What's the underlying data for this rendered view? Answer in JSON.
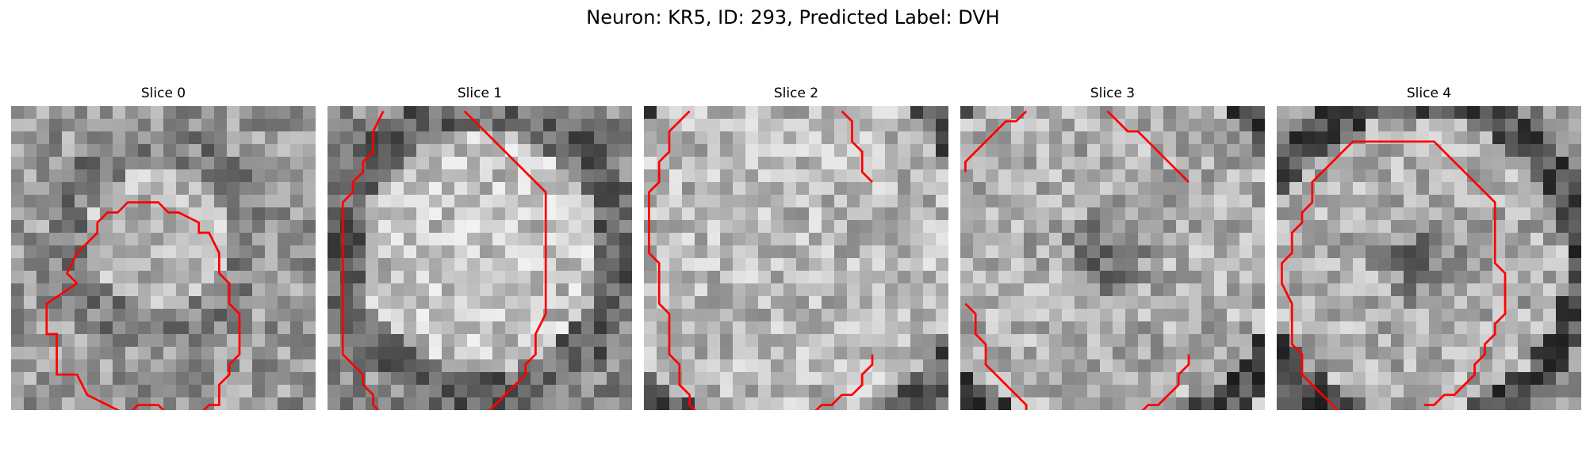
{
  "figure": {
    "title": "Neuron: KR5, ID: 293, Predicted Label: DVH"
  },
  "panels": [
    {
      "title": "Slice 0",
      "image": "grayscale-microscopy-slice",
      "contour": "red-boundary",
      "segments": [
        [
          [
            6,
            17
          ],
          [
            3,
            19
          ],
          [
            3,
            22
          ],
          [
            4,
            22
          ],
          [
            4,
            24
          ],
          [
            4,
            26
          ],
          [
            6,
            26
          ],
          [
            7,
            28
          ],
          [
            9,
            29
          ],
          [
            11,
            30
          ],
          [
            12,
            29
          ],
          [
            13,
            29
          ],
          [
            14,
            29
          ],
          [
            15,
            30
          ],
          [
            18,
            30
          ],
          [
            19,
            29
          ],
          [
            20,
            29
          ],
          [
            20,
            27
          ],
          [
            21,
            26
          ],
          [
            21,
            25
          ],
          [
            22,
            24
          ],
          [
            22,
            22
          ],
          [
            22,
            20
          ],
          [
            21,
            19
          ],
          [
            21,
            18
          ],
          [
            21,
            17
          ],
          [
            20,
            16
          ],
          [
            20,
            14
          ],
          [
            19,
            12
          ],
          [
            18,
            12
          ],
          [
            18,
            11
          ],
          [
            16,
            10
          ],
          [
            15,
            10
          ],
          [
            14,
            9
          ],
          [
            13,
            9
          ],
          [
            11,
            9
          ],
          [
            10,
            10
          ],
          [
            9,
            10
          ],
          [
            8,
            11
          ],
          [
            8,
            12
          ],
          [
            7,
            13
          ],
          [
            6,
            14
          ],
          [
            5,
            16
          ],
          [
            6,
            17
          ]
        ]
      ]
    },
    {
      "title": "Slice 1",
      "image": "grayscale-microscopy-slice",
      "contour": "red-boundary",
      "segments": [
        [
          [
            5,
            0
          ],
          [
            4,
            2
          ],
          [
            4,
            4
          ],
          [
            3,
            5
          ],
          [
            3,
            6
          ],
          [
            2,
            7
          ],
          [
            2,
            8
          ],
          [
            1,
            9
          ],
          [
            1,
            10
          ],
          [
            1,
            12
          ],
          [
            1,
            15
          ],
          [
            1,
            18
          ],
          [
            1,
            20
          ],
          [
            1,
            22
          ],
          [
            1,
            24
          ],
          [
            2,
            25
          ],
          [
            3,
            26
          ],
          [
            3,
            27
          ],
          [
            4,
            28
          ],
          [
            4,
            29
          ],
          [
            5,
            30
          ]
        ],
        [
          [
            15,
            30
          ],
          [
            16,
            29
          ],
          [
            17,
            28
          ],
          [
            18,
            27
          ],
          [
            19,
            26
          ],
          [
            19,
            25
          ],
          [
            20,
            24
          ],
          [
            20,
            22
          ],
          [
            21,
            20
          ],
          [
            21,
            18
          ],
          [
            21,
            15
          ],
          [
            21,
            12
          ],
          [
            21,
            10
          ],
          [
            21,
            8
          ],
          [
            20,
            7
          ],
          [
            19,
            6
          ],
          [
            18,
            5
          ],
          [
            17,
            4
          ],
          [
            16,
            3
          ],
          [
            15,
            2
          ],
          [
            14,
            1
          ],
          [
            13,
            0
          ]
        ]
      ]
    },
    {
      "title": "Slice 2",
      "image": "grayscale-microscopy-slice",
      "contour": "red-boundary",
      "segments": [
        [
          [
            4,
            0
          ],
          [
            3,
            1
          ],
          [
            2,
            2
          ],
          [
            2,
            4
          ],
          [
            1,
            5
          ],
          [
            1,
            7
          ],
          [
            0,
            8
          ],
          [
            0,
            10
          ],
          [
            0,
            12
          ],
          [
            0,
            14
          ],
          [
            1,
            15
          ],
          [
            1,
            17
          ],
          [
            1,
            19
          ],
          [
            2,
            20
          ],
          [
            2,
            22
          ],
          [
            2,
            24
          ],
          [
            3,
            25
          ],
          [
            3,
            27
          ],
          [
            4,
            28
          ],
          [
            4,
            29
          ],
          [
            5,
            30
          ]
        ],
        [
          [
            19,
            0
          ],
          [
            20,
            1
          ],
          [
            20,
            3
          ],
          [
            21,
            4
          ],
          [
            21,
            6
          ],
          [
            22,
            7
          ]
        ],
        [
          [
            16,
            30
          ],
          [
            17,
            29
          ],
          [
            18,
            29
          ],
          [
            19,
            28
          ],
          [
            20,
            28
          ],
          [
            21,
            27
          ],
          [
            21,
            26
          ],
          [
            22,
            25
          ],
          [
            22,
            24
          ]
        ]
      ]
    },
    {
      "title": "Slice 3",
      "image": "grayscale-microscopy-slice",
      "contour": "red-boundary",
      "segments": [
        [
          [
            6,
            0
          ],
          [
            5,
            1
          ],
          [
            4,
            1
          ],
          [
            3,
            2
          ],
          [
            2,
            3
          ],
          [
            1,
            4
          ],
          [
            0,
            5
          ],
          [
            0,
            6
          ]
        ],
        [
          [
            14,
            0
          ],
          [
            15,
            1
          ],
          [
            16,
            2
          ],
          [
            17,
            2
          ],
          [
            18,
            3
          ],
          [
            19,
            4
          ],
          [
            20,
            5
          ],
          [
            21,
            6
          ],
          [
            22,
            7
          ]
        ],
        [
          [
            0,
            19
          ],
          [
            1,
            20
          ],
          [
            1,
            22
          ],
          [
            2,
            23
          ],
          [
            2,
            25
          ],
          [
            3,
            26
          ],
          [
            4,
            27
          ],
          [
            5,
            28
          ],
          [
            6,
            29
          ],
          [
            6,
            30
          ]
        ],
        [
          [
            17,
            30
          ],
          [
            18,
            29
          ],
          [
            19,
            29
          ],
          [
            20,
            28
          ],
          [
            21,
            27
          ],
          [
            21,
            26
          ],
          [
            22,
            25
          ],
          [
            22,
            24
          ]
        ]
      ]
    },
    {
      "title": "Slice 4",
      "image": "grayscale-microscopy-slice",
      "contour": "red-boundary",
      "segments": [
        [
          [
            6,
            30
          ],
          [
            5,
            29
          ],
          [
            4,
            28
          ],
          [
            3,
            27
          ],
          [
            2,
            26
          ],
          [
            2,
            24
          ],
          [
            1,
            23
          ],
          [
            1,
            21
          ],
          [
            1,
            19
          ],
          [
            0,
            17
          ],
          [
            0,
            15
          ],
          [
            1,
            14
          ],
          [
            1,
            12
          ],
          [
            2,
            11
          ],
          [
            2,
            10
          ],
          [
            3,
            9
          ],
          [
            3,
            7
          ],
          [
            4,
            6
          ],
          [
            5,
            5
          ],
          [
            6,
            4
          ],
          [
            7,
            3
          ],
          [
            8,
            3
          ],
          [
            10,
            3
          ],
          [
            12,
            3
          ],
          [
            14,
            3
          ],
          [
            15,
            3
          ],
          [
            16,
            4
          ],
          [
            17,
            5
          ],
          [
            18,
            6
          ],
          [
            19,
            7
          ],
          [
            20,
            8
          ],
          [
            21,
            9
          ],
          [
            21,
            11
          ],
          [
            21,
            13
          ],
          [
            21,
            15
          ],
          [
            22,
            16
          ],
          [
            22,
            18
          ],
          [
            22,
            20
          ],
          [
            21,
            21
          ],
          [
            21,
            22
          ],
          [
            20,
            23
          ],
          [
            20,
            24
          ],
          [
            19,
            25
          ],
          [
            19,
            26
          ],
          [
            18,
            27
          ],
          [
            17,
            28
          ],
          [
            16,
            28
          ],
          [
            15,
            29
          ],
          [
            14,
            29
          ]
        ]
      ]
    }
  ]
}
